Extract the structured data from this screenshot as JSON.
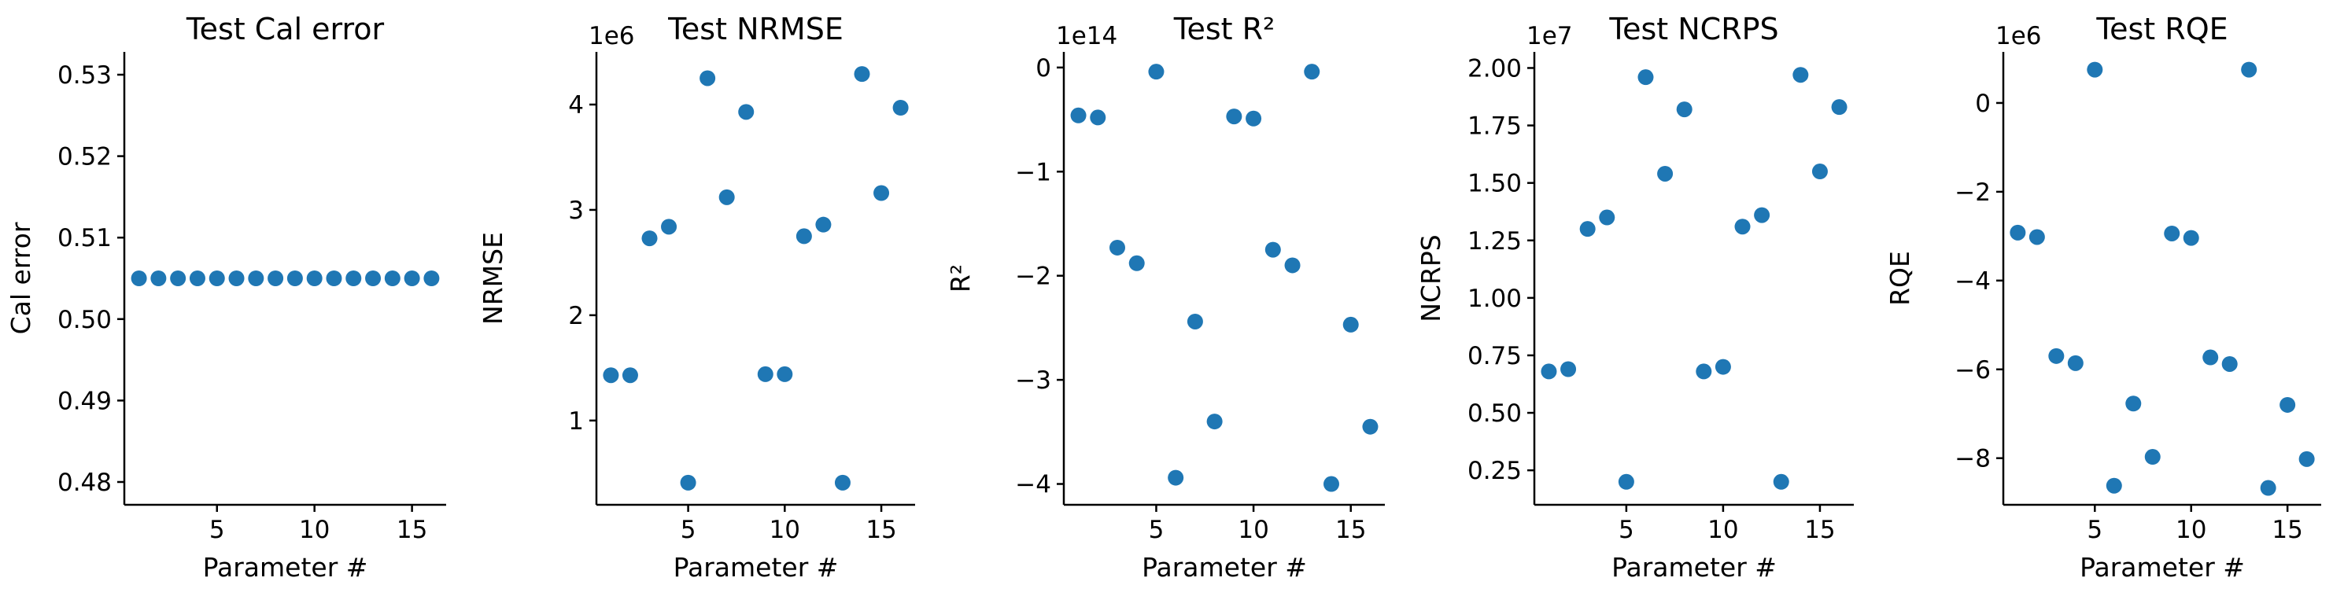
{
  "chart_data": [
    {
      "type": "scatter",
      "title": "Test Cal error",
      "xlabel": "Parameter #",
      "ylabel": "Cal error",
      "offset_text": "",
      "color": "#1f77b4",
      "xlim": [
        0.25,
        16.75
      ],
      "ylim": [
        0.4772,
        0.5328
      ],
      "xticks": [
        5,
        10,
        15
      ],
      "xtick_labels": [
        "5",
        "10",
        "15"
      ],
      "yticks": [
        0.48,
        0.49,
        0.5,
        0.51,
        0.52,
        0.53
      ],
      "ytick_labels": [
        "0.48",
        "0.49",
        "0.50",
        "0.51",
        "0.52",
        "0.53"
      ],
      "x": [
        1,
        2,
        3,
        4,
        5,
        6,
        7,
        8,
        9,
        10,
        11,
        12,
        13,
        14,
        15,
        16
      ],
      "y": [
        0.505,
        0.505,
        0.505,
        0.505,
        0.505,
        0.505,
        0.505,
        0.505,
        0.505,
        0.505,
        0.505,
        0.505,
        0.505,
        0.505,
        0.505,
        0.505
      ]
    },
    {
      "type": "scatter",
      "title": "Test NRMSE",
      "xlabel": "Parameter #",
      "ylabel": "NRMSE",
      "offset_text": "1e6",
      "color": "#1f77b4",
      "xlim": [
        0.25,
        16.75
      ],
      "ylim": [
        0.2,
        4.5
      ],
      "xticks": [
        5,
        10,
        15
      ],
      "xtick_labels": [
        "5",
        "10",
        "15"
      ],
      "yticks": [
        1,
        2,
        3,
        4
      ],
      "ytick_labels": [
        "1",
        "2",
        "3",
        "4"
      ],
      "x": [
        1,
        2,
        3,
        4,
        5,
        6,
        7,
        8,
        9,
        10,
        11,
        12,
        13,
        14,
        15,
        16
      ],
      "y": [
        1.43,
        1.43,
        2.73,
        2.84,
        0.41,
        4.25,
        3.12,
        3.93,
        1.44,
        1.44,
        2.75,
        2.86,
        0.41,
        4.29,
        3.16,
        3.97
      ]
    },
    {
      "type": "scatter",
      "title": "Test R²",
      "xlabel": "Parameter #",
      "ylabel": "R²",
      "offset_text": "1e14",
      "color": "#1f77b4",
      "xlim": [
        0.25,
        16.75
      ],
      "ylim": [
        -4.2,
        0.15
      ],
      "xticks": [
        5,
        10,
        15
      ],
      "xtick_labels": [
        "5",
        "10",
        "15"
      ],
      "yticks": [
        -4,
        -3,
        -2,
        -1,
        0
      ],
      "ytick_labels": [
        "−4",
        "−3",
        "−2",
        "−1",
        "0"
      ],
      "x": [
        1,
        2,
        3,
        4,
        5,
        6,
        7,
        8,
        9,
        10,
        11,
        12,
        13,
        14,
        15,
        16
      ],
      "y": [
        -0.46,
        -0.48,
        -1.73,
        -1.88,
        -0.04,
        -3.94,
        -2.44,
        -3.4,
        -0.47,
        -0.49,
        -1.75,
        -1.9,
        -0.04,
        -4.0,
        -2.47,
        -3.45
      ]
    },
    {
      "type": "scatter",
      "title": "Test NCRPS",
      "xlabel": "Parameter #",
      "ylabel": "NCRPS",
      "offset_text": "1e7",
      "color": "#1f77b4",
      "xlim": [
        0.25,
        16.75
      ],
      "ylim": [
        0.1,
        2.07
      ],
      "xticks": [
        5,
        10,
        15
      ],
      "xtick_labels": [
        "5",
        "10",
        "15"
      ],
      "yticks": [
        0.25,
        0.5,
        0.75,
        1.0,
        1.25,
        1.5,
        1.75,
        2.0
      ],
      "ytick_labels": [
        "0.25",
        "0.50",
        "0.75",
        "1.00",
        "1.25",
        "1.50",
        "1.75",
        "2.00"
      ],
      "x": [
        1,
        2,
        3,
        4,
        5,
        6,
        7,
        8,
        9,
        10,
        11,
        12,
        13,
        14,
        15,
        16
      ],
      "y": [
        0.68,
        0.69,
        1.3,
        1.35,
        0.2,
        1.96,
        1.54,
        1.82,
        0.68,
        0.7,
        1.31,
        1.36,
        0.2,
        1.97,
        1.55,
        1.83
      ]
    },
    {
      "type": "scatter",
      "title": "Test RQE",
      "xlabel": "Parameter #",
      "ylabel": "RQE",
      "offset_text": "1e6",
      "color": "#1f77b4",
      "xlim": [
        0.25,
        16.75
      ],
      "ylim": [
        -9.05,
        1.15
      ],
      "xticks": [
        5,
        10,
        15
      ],
      "xtick_labels": [
        "5",
        "10",
        "15"
      ],
      "yticks": [
        -8,
        -6,
        -4,
        -2,
        0
      ],
      "ytick_labels": [
        "−8",
        "−6",
        "−4",
        "−2",
        "0"
      ],
      "x": [
        1,
        2,
        3,
        4,
        5,
        6,
        7,
        8,
        9,
        10,
        11,
        12,
        13,
        14,
        15,
        16
      ],
      "y": [
        -2.92,
        -3.02,
        -5.7,
        -5.86,
        0.75,
        -8.62,
        -6.77,
        -7.97,
        -2.94,
        -3.04,
        -5.73,
        -5.88,
        0.75,
        -8.67,
        -6.8,
        -8.02
      ]
    }
  ]
}
